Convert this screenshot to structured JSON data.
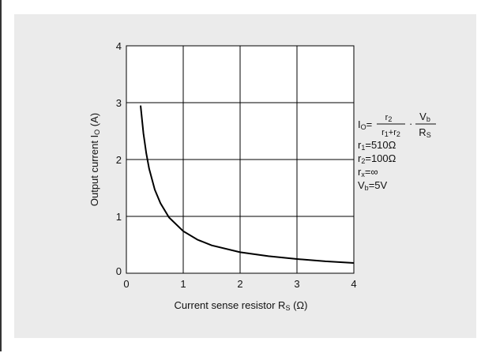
{
  "chart_data": {
    "type": "line",
    "xlabel": {
      "main": "Current sense resistor R",
      "sub": "S",
      "unit": " (Ω)"
    },
    "ylabel": {
      "main": "Output current I",
      "sub": "O",
      "unit": " (A)"
    },
    "xlim": [
      0,
      4
    ],
    "ylim": [
      0,
      4
    ],
    "xticks": [
      "0",
      "1",
      "2",
      "3",
      "4"
    ],
    "yticks": [
      "0",
      "1",
      "2",
      "3",
      "4"
    ],
    "grid": true,
    "colors": {
      "panel": "#ebebeb",
      "plot_bg": "#ffffff",
      "line": "#000000"
    },
    "series": [
      {
        "x": [
          0.25,
          0.3,
          0.35,
          0.4,
          0.5,
          0.6,
          0.75,
          1.0,
          1.25,
          1.5,
          2.0,
          2.5,
          3.0,
          3.5,
          4.0
        ],
        "y": [
          2.95,
          2.46,
          2.11,
          1.84,
          1.47,
          1.23,
          0.98,
          0.74,
          0.59,
          0.49,
          0.37,
          0.3,
          0.25,
          0.21,
          0.18
        ]
      }
    ],
    "annotation": {
      "formula": {
        "lhs": "I",
        "lhs_sub": "O",
        "eq": "=",
        "frac1_num": "r",
        "frac1_num_sub": "2",
        "frac1_den_a": "r",
        "frac1_den_a_sub": "1",
        "frac1_den_plus": "+",
        "frac1_den_b": "r",
        "frac1_den_b_sub": "2",
        "dot": "·",
        "frac2_num": "V",
        "frac2_num_sub": "b",
        "frac2_den": "R",
        "frac2_den_sub": "S"
      },
      "params": [
        {
          "sym": "r",
          "sub": "1",
          "val": "=510Ω"
        },
        {
          "sym": "r",
          "sub": "2",
          "val": "=100Ω"
        },
        {
          "sym": "r",
          "sub": "x",
          "val": "=∞"
        },
        {
          "sym": "V",
          "sub": "b",
          "val": "=5V"
        }
      ]
    }
  }
}
